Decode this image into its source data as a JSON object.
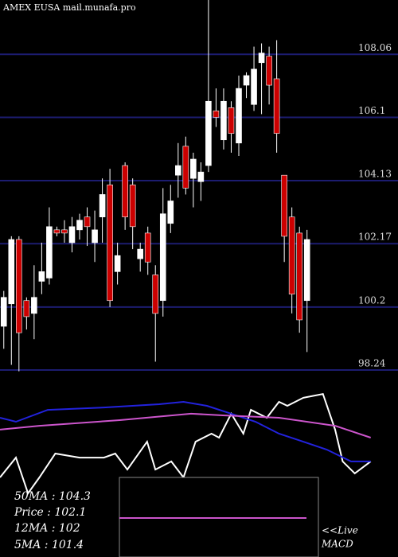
{
  "chart_data": {
    "type": "candlestick",
    "title": "AMEX  EUSA mail.munafa.pro",
    "ylim": [
      98.24,
      109.75
    ],
    "yticks": [
      108.06,
      106.1,
      104.13,
      102.17,
      100.2,
      98.24
    ],
    "xlim": [
      -0.5,
      52
    ],
    "grid": true,
    "up_color": "#ffffff",
    "down_color": "#cc0000",
    "open": [
      99.6,
      100.3,
      102.3,
      100.4,
      100.0,
      101.0,
      101.1,
      102.6,
      102.6,
      102.2,
      102.6,
      103.0,
      102.2,
      103.0,
      104.0,
      101.3,
      104.6,
      104.0,
      101.7,
      102.5,
      101.2,
      100.4,
      102.8,
      104.3,
      105.2,
      104.2,
      104.1,
      104.6,
      106.3,
      105.4,
      106.4,
      105.3,
      107.1,
      106.5,
      107.8,
      108.0,
      107.3,
      104.3,
      103.0,
      102.5,
      100.4
    ],
    "high": [
      100.7,
      102.4,
      102.4,
      100.5,
      101.5,
      102.2,
      103.3,
      102.7,
      102.9,
      103.0,
      103.1,
      103.3,
      103.2,
      104.2,
      104.5,
      102.2,
      104.7,
      104.2,
      102.2,
      102.7,
      101.5,
      103.9,
      104.0,
      105.3,
      105.5,
      105.0,
      104.7,
      109.8,
      107.0,
      107.0,
      106.6,
      107.4,
      107.5,
      108.3,
      108.4,
      108.3,
      108.5,
      104.3,
      103.3,
      102.7,
      102.6
    ],
    "low": [
      98.9,
      98.4,
      98.2,
      99.5,
      99.2,
      100.6,
      100.9,
      102.4,
      102.2,
      101.9,
      102.3,
      102.1,
      101.6,
      102.2,
      100.2,
      100.9,
      102.6,
      102.0,
      101.3,
      101.2,
      98.5,
      99.9,
      102.5,
      103.6,
      103.7,
      103.3,
      103.5,
      104.4,
      105.8,
      105.1,
      105.0,
      104.9,
      106.7,
      106.3,
      106.2,
      106.5,
      105.0,
      101.6,
      100.0,
      99.4,
      98.8
    ],
    "close": [
      100.5,
      102.3,
      99.4,
      99.9,
      100.5,
      101.3,
      102.7,
      102.5,
      102.5,
      102.7,
      102.9,
      102.7,
      102.6,
      103.7,
      100.4,
      101.8,
      103.0,
      102.7,
      102.0,
      101.6,
      100.0,
      103.1,
      103.5,
      104.6,
      103.9,
      104.8,
      104.4,
      106.6,
      106.1,
      106.6,
      105.6,
      107.0,
      107.4,
      107.6,
      108.1,
      107.1,
      105.6,
      102.4,
      100.6,
      99.8,
      102.3
    ],
    "indicator_ylim": [
      0,
      100
    ],
    "indicators": [
      {
        "color": "#ffffff",
        "x": [
          -0.5,
          1.6,
          3.2,
          4.7,
          6.8,
          10,
          13.2,
          14.7,
          16.3,
          18.9,
          20,
          22.1,
          23.7,
          25.3,
          27.4,
          28.4,
          30,
          31.6,
          32.6,
          34.7,
          36.3,
          37.4,
          39.5,
          42.1,
          43.7,
          44.7,
          46.3,
          48.4
        ],
        "values": [
          43.5,
          54.3,
          34.8,
          43.5,
          56.5,
          54.3,
          54.3,
          56.5,
          47.8,
          63,
          47.8,
          52.2,
          43.5,
          63,
          67.4,
          65.2,
          78.3,
          67.4,
          80.4,
          76.1,
          84.8,
          82.6,
          87,
          89.1,
          69.6,
          52.2,
          45.7,
          52.2
        ]
      },
      {
        "color": "#2222dd",
        "x": [
          -0.5,
          1.6,
          5.8,
          13.2,
          20.5,
          23.7,
          26.8,
          30,
          33.2,
          36.3,
          39.5,
          42.6,
          45.8,
          48.4
        ],
        "values": [
          76.1,
          73.9,
          80.4,
          81.7,
          83.5,
          84.8,
          82.6,
          78.3,
          73.9,
          67.4,
          63,
          58.7,
          52.2,
          52.2
        ]
      },
      {
        "color": "#cc55cc",
        "x": [
          -0.5,
          4.7,
          15.3,
          24.7,
          28.9,
          36.3,
          43.7,
          48.4
        ],
        "values": [
          69.6,
          71.7,
          74.8,
          78.3,
          77.4,
          76.1,
          71.7,
          65.2
        ]
      }
    ],
    "info": [
      "50MA : 104.3",
      "Price  : 102.1",
      "12MA : 102",
      "5MA : 101.4"
    ],
    "live_label": "<<Live",
    "macd_label": "MACD"
  }
}
